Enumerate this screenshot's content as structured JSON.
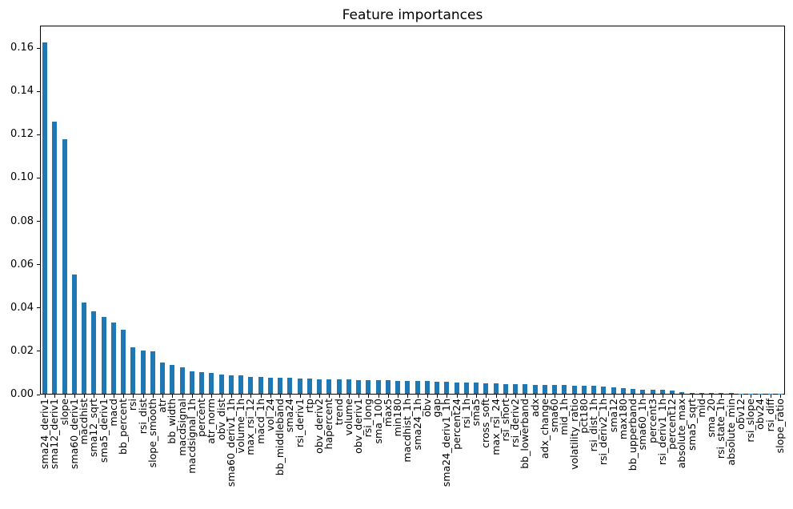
{
  "chart_data": {
    "type": "bar",
    "title": "Feature importances",
    "xlabel": "",
    "ylabel": "",
    "grid": false,
    "legend": null,
    "bar_color": "#1f77b4",
    "spine_color": "#000000",
    "text_color": "#000000",
    "background_color": "#ffffff",
    "ylim": [
      0,
      0.1704
    ],
    "yticks": [
      0.0,
      0.02,
      0.04,
      0.06,
      0.08,
      0.1,
      0.12,
      0.14,
      0.16
    ],
    "categories": [
      "sma24_deriv1",
      "sma12_deriv1",
      "slope",
      "sma60_deriv1",
      "macdhist",
      "sma12_sqrt",
      "sma5_deriv1",
      "macd",
      "bb_percent",
      "rsi",
      "rsi_dist",
      "slope_smooth",
      "atr",
      "bb_width",
      "macdsignal",
      "macdsignal_1h",
      "percent",
      "atr_norm",
      "obv_dist",
      "sma60_deriv1_1h",
      "volume_1h",
      "max_rsi_12",
      "macd_1h",
      "vol_24",
      "bb_middleband",
      "sma24",
      "rsi_deriv1",
      "rtp",
      "obv_deriv2",
      "hapercent",
      "trend",
      "volume",
      "obv_deriv1",
      "rsi_long",
      "sma_100",
      "max5",
      "min180",
      "macdhist_1h",
      "sma24_1h",
      "obv",
      "gap",
      "sma24_deriv1_1h",
      "percent24",
      "rsi_1h",
      "sma5",
      "cross_soft",
      "max_rsi_24",
      "rsi_short",
      "rsi_deriv2",
      "bb_lowerband",
      "adx",
      "adx_change",
      "sma60",
      "mid_1h",
      "volatility_ratio",
      "pct180",
      "rsi_dist_1h",
      "rsi_deriv2_1h",
      "sma12",
      "max180",
      "bb_upperband",
      "sma60_1h",
      "percent3",
      "rsi_deriv1_1h",
      "percent12",
      "absolute_max",
      "sma5_sqrt",
      "mid",
      "sma_20",
      "rsi_state_1h",
      "absolute_min",
      "obv12",
      "rsi_slope",
      "obv24",
      "rsi_diff",
      "slope_ratio"
    ],
    "values": [
      0.1628,
      0.1262,
      0.1181,
      0.0552,
      0.0423,
      0.0382,
      0.0357,
      0.033,
      0.0296,
      0.0215,
      0.0202,
      0.0198,
      0.0146,
      0.0132,
      0.0123,
      0.0104,
      0.0102,
      0.0098,
      0.0091,
      0.0085,
      0.0084,
      0.0079,
      0.0077,
      0.0076,
      0.0075,
      0.0074,
      0.0071,
      0.0069,
      0.0068,
      0.0068,
      0.0067,
      0.0066,
      0.0065,
      0.0064,
      0.0063,
      0.0062,
      0.0061,
      0.006,
      0.0059,
      0.0058,
      0.0057,
      0.0056,
      0.0053,
      0.0052,
      0.0051,
      0.005,
      0.0048,
      0.0046,
      0.0045,
      0.0044,
      0.0042,
      0.0041,
      0.004,
      0.004,
      0.0038,
      0.0037,
      0.0036,
      0.0033,
      0.003,
      0.0027,
      0.0022,
      0.002,
      0.0019,
      0.0018,
      0.0016,
      0.0009,
      0.0003,
      0.0003,
      0.0002,
      0.0002,
      0.0002,
      0.0001,
      0.0001,
      0.0001,
      0.0001,
      0.0001
    ]
  }
}
